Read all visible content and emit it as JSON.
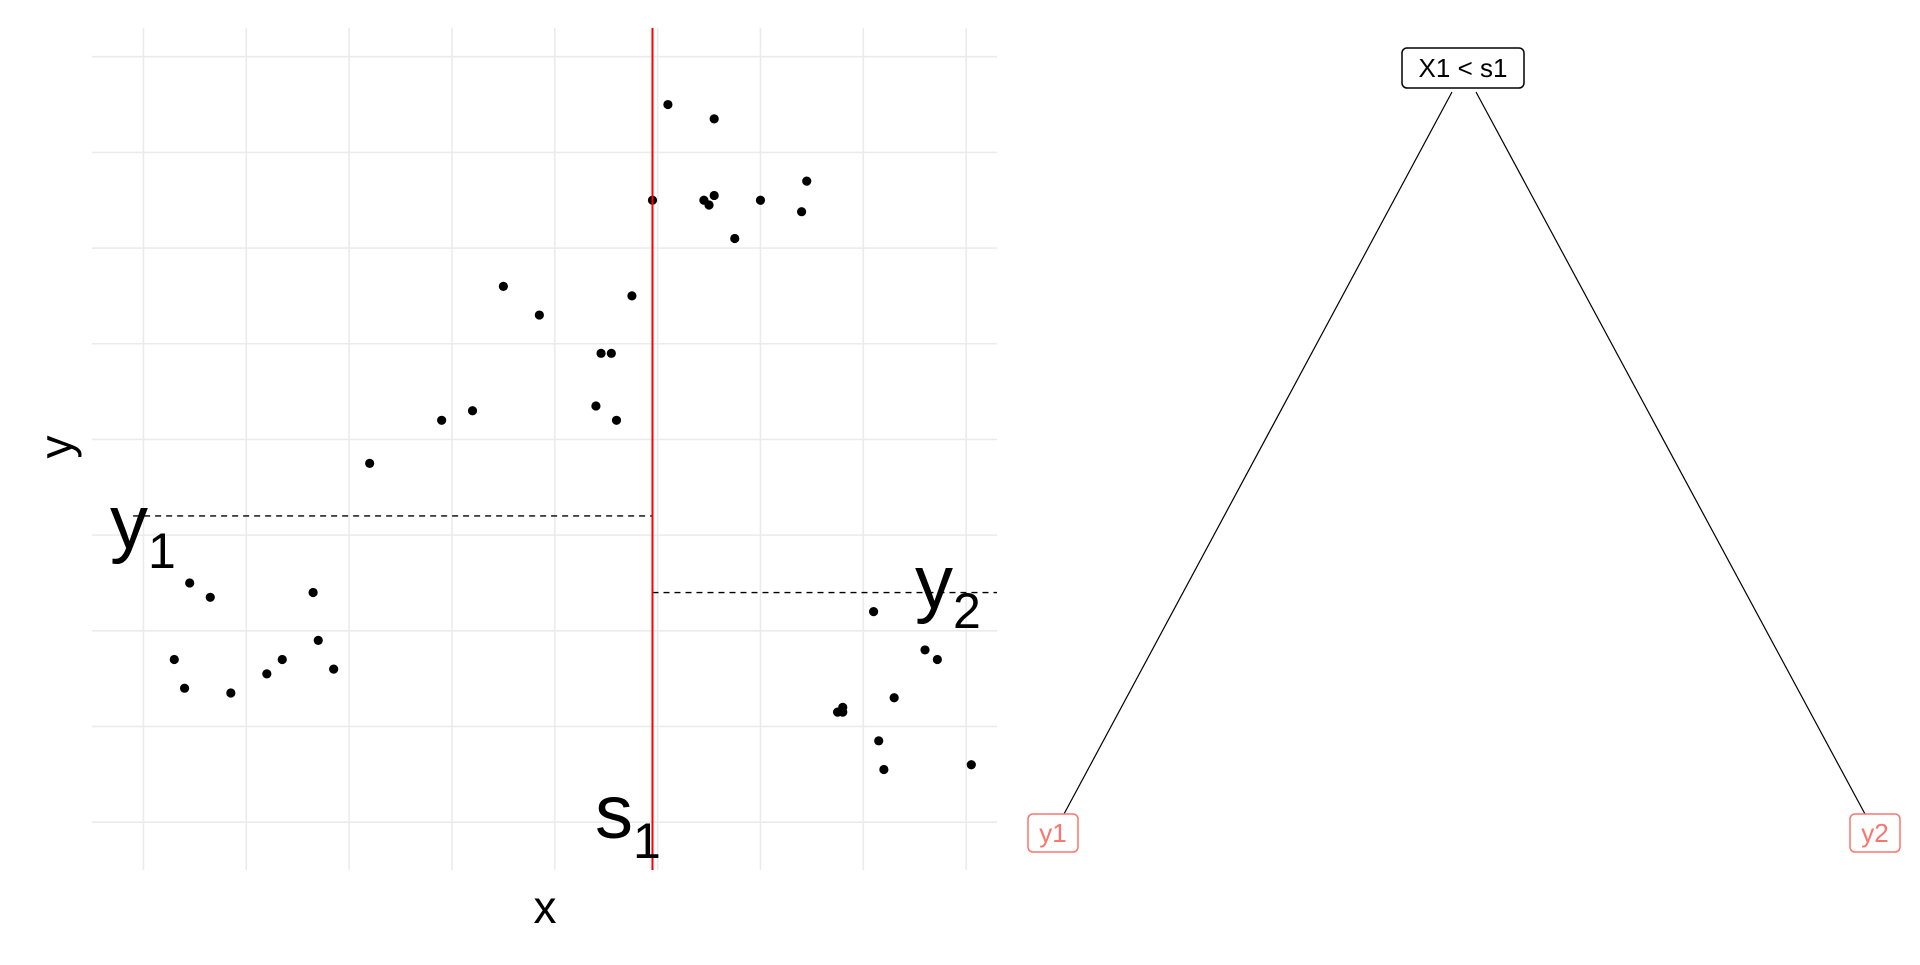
{
  "chart_data": {
    "type": "scatter",
    "xlabel": "x",
    "ylabel": "y",
    "xlim": [
      0.5,
      9.3
    ],
    "ylim": [
      0.5,
      9.3
    ],
    "grid": true,
    "points": [
      {
        "x": 1.3,
        "y": 2.7
      },
      {
        "x": 1.4,
        "y": 2.4
      },
      {
        "x": 1.45,
        "y": 3.5
      },
      {
        "x": 1.65,
        "y": 3.35
      },
      {
        "x": 1.85,
        "y": 2.35
      },
      {
        "x": 2.2,
        "y": 2.55
      },
      {
        "x": 2.35,
        "y": 2.7
      },
      {
        "x": 2.65,
        "y": 3.4
      },
      {
        "x": 2.7,
        "y": 2.9
      },
      {
        "x": 2.85,
        "y": 2.6
      },
      {
        "x": 3.2,
        "y": 4.75
      },
      {
        "x": 3.9,
        "y": 5.2
      },
      {
        "x": 4.2,
        "y": 5.3
      },
      {
        "x": 4.5,
        "y": 6.6
      },
      {
        "x": 4.85,
        "y": 6.3
      },
      {
        "x": 5.4,
        "y": 5.35
      },
      {
        "x": 5.45,
        "y": 5.9
      },
      {
        "x": 5.55,
        "y": 5.9
      },
      {
        "x": 5.6,
        "y": 5.2
      },
      {
        "x": 5.75,
        "y": 6.5
      },
      {
        "x": 5.95,
        "y": 7.5
      },
      {
        "x": 6.1,
        "y": 8.5
      },
      {
        "x": 6.45,
        "y": 7.5
      },
      {
        "x": 6.5,
        "y": 7.45
      },
      {
        "x": 6.55,
        "y": 8.35
      },
      {
        "x": 6.55,
        "y": 7.55
      },
      {
        "x": 6.75,
        "y": 7.1
      },
      {
        "x": 7.0,
        "y": 7.5
      },
      {
        "x": 7.4,
        "y": 7.38
      },
      {
        "x": 7.45,
        "y": 7.7
      },
      {
        "x": 7.75,
        "y": 2.15
      },
      {
        "x": 7.8,
        "y": 2.2
      },
      {
        "x": 7.8,
        "y": 2.15
      },
      {
        "x": 8.1,
        "y": 3.2
      },
      {
        "x": 8.15,
        "y": 1.85
      },
      {
        "x": 8.2,
        "y": 1.55
      },
      {
        "x": 8.3,
        "y": 2.3
      },
      {
        "x": 8.6,
        "y": 2.8
      },
      {
        "x": 8.72,
        "y": 2.7
      },
      {
        "x": 9.05,
        "y": 1.6
      }
    ],
    "split": {
      "x": 5.95,
      "label_main": "s",
      "label_sub": "1",
      "color": "#ff0000"
    },
    "means": [
      {
        "label_main": "y",
        "label_sub": "1",
        "y": 4.2,
        "x_from": 0.9,
        "x_to": 5.95
      },
      {
        "label_main": "y",
        "label_sub": "2",
        "y": 3.4,
        "x_from": 5.95,
        "x_to": 9.3
      }
    ]
  },
  "tree": {
    "root_label": "X1 < s1",
    "leaves": [
      {
        "label": "y1"
      },
      {
        "label": "y2"
      }
    ],
    "leaf_color": "#f8766d"
  }
}
